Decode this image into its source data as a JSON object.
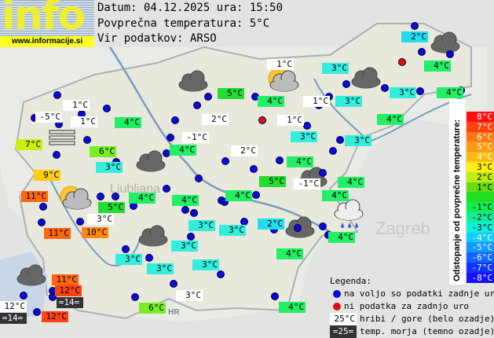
{
  "header": {
    "date_line": "Datum: 04.12.2025 ura: 15:50",
    "avg_line": "Povprečna temperatura: 5°C",
    "source_line": "Vir podatkov: ARSO"
  },
  "logo": {
    "word": "info",
    "url": "www.informacije.si"
  },
  "map_labels": {
    "zagreb": "Zagreb",
    "ljubljana": "Ljubljana",
    "hr": "HR"
  },
  "stations": [
    {
      "t": "2°C",
      "c": "#22ddee"
    },
    {
      "t": "1°C",
      "c": "#ffffff"
    },
    {
      "t": "3°C",
      "c": "#33eedd"
    },
    {
      "t": "4°C",
      "c": "#22ee66"
    },
    {
      "t": "5°C",
      "c": "#22dd33"
    },
    {
      "t": "4°C",
      "c": "#22ee66"
    },
    {
      "t": "1°C",
      "c": "#ffffff"
    },
    {
      "t": "3°C",
      "c": "#33eedd"
    },
    {
      "t": "3°C",
      "c": "#33eedd"
    },
    {
      "t": "4°C",
      "c": "#22ee66"
    },
    {
      "t": "1°C",
      "c": "#ffffff"
    },
    {
      "t": "-5°C",
      "c": "#ffffff"
    },
    {
      "t": "1°C",
      "c": "#ffffff"
    },
    {
      "t": "4°C",
      "c": "#22ee66"
    },
    {
      "t": "2°C",
      "c": "#ffffff"
    },
    {
      "t": "1°C",
      "c": "#ffffff"
    },
    {
      "t": "4°C",
      "c": "#22ee66"
    },
    {
      "t": "7°C",
      "c": "#ccee11"
    },
    {
      "t": "-1°C",
      "c": "#ffffff"
    },
    {
      "t": "6°C",
      "c": "#77ee22"
    },
    {
      "t": "4°C",
      "c": "#22ee66"
    },
    {
      "t": "2°C",
      "c": "#ffffff"
    },
    {
      "t": "3°C",
      "c": "#33eedd"
    },
    {
      "t": "3°C",
      "c": "#33eedd"
    },
    {
      "t": "3°C",
      "c": "#33eedd"
    },
    {
      "t": "4°C",
      "c": "#22ee66"
    },
    {
      "t": "9°C",
      "c": "#ffcc11"
    },
    {
      "t": "5°C",
      "c": "#22dd33"
    },
    {
      "t": "-1°C",
      "c": "#ffffff"
    },
    {
      "t": "4°C",
      "c": "#22ee66"
    },
    {
      "t": "11°C",
      "c": "#ff6611"
    },
    {
      "t": "4°C",
      "c": "#22ee66"
    },
    {
      "t": "4°C",
      "c": "#22ee66"
    },
    {
      "t": "4°C",
      "c": "#22ee66"
    },
    {
      "t": "4°C",
      "c": "#22ee66"
    },
    {
      "t": "5°C",
      "c": "#22dd33"
    },
    {
      "t": "3°C",
      "c": "#ffffff"
    },
    {
      "t": "3°C",
      "c": "#33eedd"
    },
    {
      "t": "3°C",
      "c": "#33eedd"
    },
    {
      "t": "2°C",
      "c": "#22ddee"
    },
    {
      "t": "11°C",
      "c": "#ff6611"
    },
    {
      "t": "10°C",
      "c": "#ff8811"
    },
    {
      "t": "4°C",
      "c": "#22ee66"
    },
    {
      "t": "3°C",
      "c": "#33eedd"
    },
    {
      "t": "4°C",
      "c": "#22ee66"
    },
    {
      "t": "3°C",
      "c": "#33eedd"
    },
    {
      "t": "3°C",
      "c": "#33eedd"
    },
    {
      "t": "3°C",
      "c": "#33eedd"
    },
    {
      "t": "11°C",
      "c": "#ff6611"
    },
    {
      "t": "12°C",
      "c": "#ff4411"
    },
    {
      "t": "=14=",
      "c": "#333333"
    },
    {
      "t": "3°C",
      "c": "#ffffff"
    },
    {
      "t": "12°C",
      "c": "#ffffff"
    },
    {
      "t": "6°C",
      "c": "#77ee22"
    },
    {
      "t": "4°C",
      "c": "#22ee66"
    },
    {
      "t": "=14=",
      "c": "#333333"
    },
    {
      "t": "12°C",
      "c": "#ff4411"
    }
  ],
  "scale": {
    "title": "Odstopanje od povprečne temperature:",
    "steps": [
      {
        "t": "8°C",
        "c": "#ff1111"
      },
      {
        "t": "7°C",
        "c": "#ff4411"
      },
      {
        "t": "6°C",
        "c": "#ff7711"
      },
      {
        "t": "5°C",
        "c": "#ff9911"
      },
      {
        "t": "4°C",
        "c": "#ffbb11"
      },
      {
        "t": "3°C",
        "c": "#ffee11"
      },
      {
        "t": "2°C",
        "c": "#bbee11"
      },
      {
        "t": "1°C",
        "c": "#66dd11"
      },
      {
        "t": "",
        "c": "#22dd22"
      },
      {
        "t": "-1°C",
        "c": "#11ee55"
      },
      {
        "t": "-2°C",
        "c": "#11ee99"
      },
      {
        "t": "-3°C",
        "c": "#11eedd"
      },
      {
        "t": "-4°C",
        "c": "#11ccff"
      },
      {
        "t": "-5°C",
        "c": "#1199ff"
      },
      {
        "t": "-6°C",
        "c": "#1166ff"
      },
      {
        "t": "-7°C",
        "c": "#1133ff"
      },
      {
        "t": "-8°C",
        "c": "#1111ff"
      }
    ]
  },
  "legend": {
    "title": "Legenda:",
    "blue_dot": "na voljo so podatki zadnje ure",
    "red_dot": "ni podatka za zadnjo uro",
    "white_sample": "25°C",
    "white_desc": "hribi / gore (belo ozadje)",
    "dark_sample": "=25=",
    "dark_desc": "temp. morja (temno ozadje)"
  }
}
